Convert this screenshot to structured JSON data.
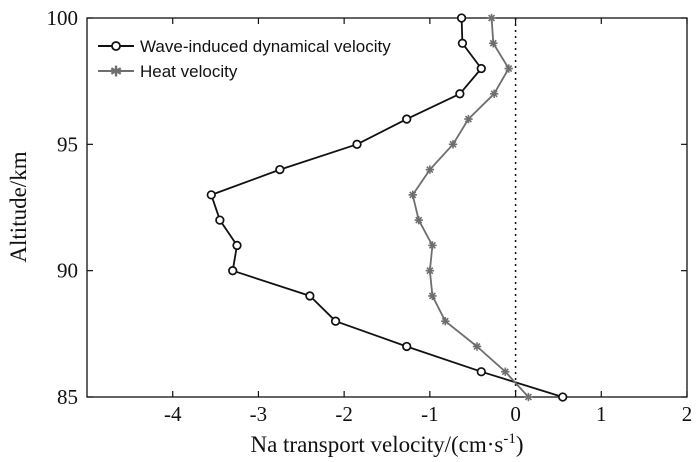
{
  "chart_data": {
    "type": "line",
    "title": "",
    "xlabel": "Na transport velocity/(cm·s",
    "xlabel_sup": "-1",
    "xlabel_close": ")",
    "ylabel": "Altitude/km",
    "xlim": [
      -5,
      2
    ],
    "ylim": [
      85,
      100
    ],
    "xticks": [
      -4,
      -3,
      -2,
      -1,
      0,
      1,
      2
    ],
    "xtick_labels": [
      "-4",
      "-3",
      "-2",
      "-1",
      "0",
      "1",
      "2"
    ],
    "yticks": [
      85,
      90,
      95,
      100
    ],
    "ytick_labels": [
      "85",
      "90",
      "95",
      "100"
    ],
    "grid": false,
    "legend_position": "top-left",
    "reference_line": {
      "x": 0,
      "style": "dotted"
    },
    "series": [
      {
        "name": "Wave-induced dynamical velocity",
        "color": "#111111",
        "marker": "circle",
        "x": [
          0.55,
          -0.4,
          -1.27,
          -2.1,
          -2.4,
          -3.3,
          -3.25,
          -3.45,
          -3.55,
          -2.75,
          -1.85,
          -1.27,
          -0.65,
          -0.4,
          -0.62,
          -0.63
        ],
        "y": [
          85,
          86,
          87,
          88,
          89,
          90,
          91,
          92,
          93,
          94,
          95,
          96,
          97,
          98,
          99,
          100
        ]
      },
      {
        "name": "Heat velocity",
        "color": "#6e6e6e",
        "marker": "star",
        "x": [
          0.15,
          -0.12,
          -0.45,
          -0.82,
          -0.97,
          -1.0,
          -0.97,
          -1.13,
          -1.2,
          -1.0,
          -0.73,
          -0.55,
          -0.25,
          -0.08,
          -0.26,
          -0.28
        ],
        "y": [
          85,
          86,
          87,
          88,
          89,
          90,
          91,
          92,
          93,
          94,
          95,
          96,
          97,
          98,
          99,
          100
        ]
      }
    ]
  }
}
